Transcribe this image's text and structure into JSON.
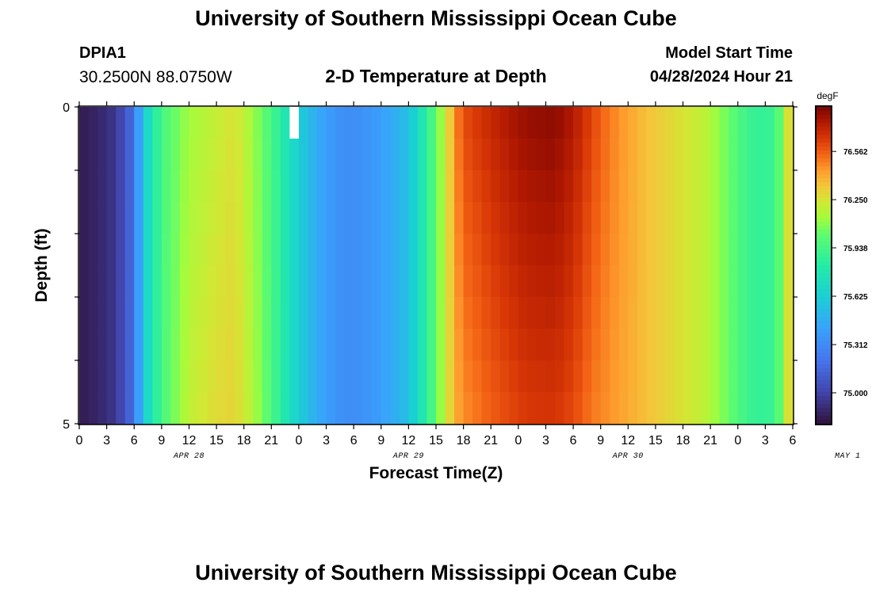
{
  "header": {
    "title": "University of Southern Mississippi Ocean Cube",
    "station": "DPIA1",
    "coords": "30.2500N  88.0750W",
    "subtitle": "2-D Temperature at Depth",
    "start_label": "Model Start Time",
    "start_time": "04/28/2024 Hour 21"
  },
  "footer": {
    "title": "University of Southern Mississippi Ocean Cube"
  },
  "chart_data": {
    "type": "heatmap",
    "xlabel": "Forecast Time(Z)",
    "ylabel": "Depth (ft)",
    "x_tick_labels": [
      "0",
      "3",
      "6",
      "9",
      "12",
      "15",
      "18",
      "21",
      "0",
      "3",
      "6",
      "9",
      "12",
      "15",
      "18",
      "21",
      "0",
      "3",
      "6",
      "9",
      "12",
      "15",
      "18",
      "21",
      "0",
      "3",
      "6"
    ],
    "date_labels": [
      "APR 28",
      "APR 29",
      "APR 30",
      "MAY 1"
    ],
    "y_range": [
      0,
      5
    ],
    "y_tick_labels": [
      "0",
      "5"
    ],
    "colorbar_unit": "degF",
    "colorbar_ticks": [
      "75.000",
      "75.312",
      "75.625",
      "75.938",
      "76.250",
      "76.562"
    ],
    "colorbar_range": [
      74.8,
      76.85
    ],
    "depth_rows_ft": [
      0.25,
      0.75,
      1.25,
      1.75,
      2.25,
      2.75,
      3.25,
      3.75,
      4.25,
      4.75
    ],
    "hour_profile": {
      "hours": [
        0,
        2,
        4,
        6,
        7,
        9,
        12,
        15,
        17,
        19,
        21,
        23,
        26,
        29,
        31,
        33,
        36,
        38,
        40,
        41,
        42,
        45,
        47,
        49,
        52,
        54,
        56,
        58,
        60,
        62,
        64,
        66,
        68,
        70,
        72,
        74,
        76,
        77,
        78
      ],
      "surface_degF": [
        74.84,
        74.88,
        74.95,
        75.2,
        75.6,
        75.95,
        76.13,
        76.2,
        76.26,
        76.12,
        75.95,
        75.72,
        75.45,
        75.32,
        75.34,
        75.4,
        75.55,
        75.85,
        76.2,
        76.45,
        76.6,
        76.7,
        76.76,
        76.8,
        76.82,
        76.75,
        76.62,
        76.5,
        76.42,
        76.35,
        76.3,
        76.25,
        76.2,
        76.1,
        75.97,
        75.87,
        75.9,
        76.1,
        76.42
      ],
      "deep_degF": [
        74.84,
        74.88,
        74.95,
        75.2,
        75.6,
        75.95,
        76.2,
        76.28,
        76.3,
        76.16,
        75.97,
        75.72,
        75.45,
        75.32,
        75.34,
        75.4,
        75.55,
        75.85,
        76.2,
        76.38,
        76.46,
        76.55,
        76.6,
        76.64,
        76.65,
        76.6,
        76.5,
        76.45,
        76.4,
        76.35,
        76.3,
        76.25,
        76.2,
        76.1,
        75.97,
        75.87,
        75.9,
        76.1,
        76.42
      ]
    },
    "missing_cell": {
      "hour": 23,
      "depth_ft": 0.25
    }
  }
}
